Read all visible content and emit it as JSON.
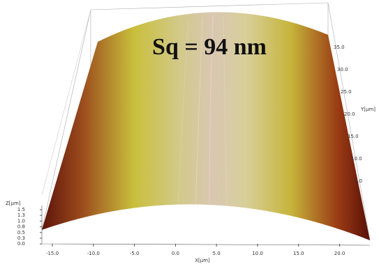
{
  "annotation": "Sq = 94 nm",
  "x_axis": {
    "title": "X[µm]",
    "ticks": [
      "-15.0",
      "-10.0",
      "-5.0",
      "0.0",
      "5.0",
      "10.0",
      "15.0",
      "20.0"
    ]
  },
  "y_axis": {
    "title": "Y[µm]",
    "ticks": [
      "35.0",
      "30.0",
      "25.0",
      "20.0",
      "15.0",
      "10.0",
      "5.0"
    ]
  },
  "z_axis": {
    "title": "Z[µm]",
    "ticks": [
      "1.5",
      "1.3",
      "1.0",
      "0.8",
      "0.5",
      "0.3",
      "0.0"
    ]
  }
}
